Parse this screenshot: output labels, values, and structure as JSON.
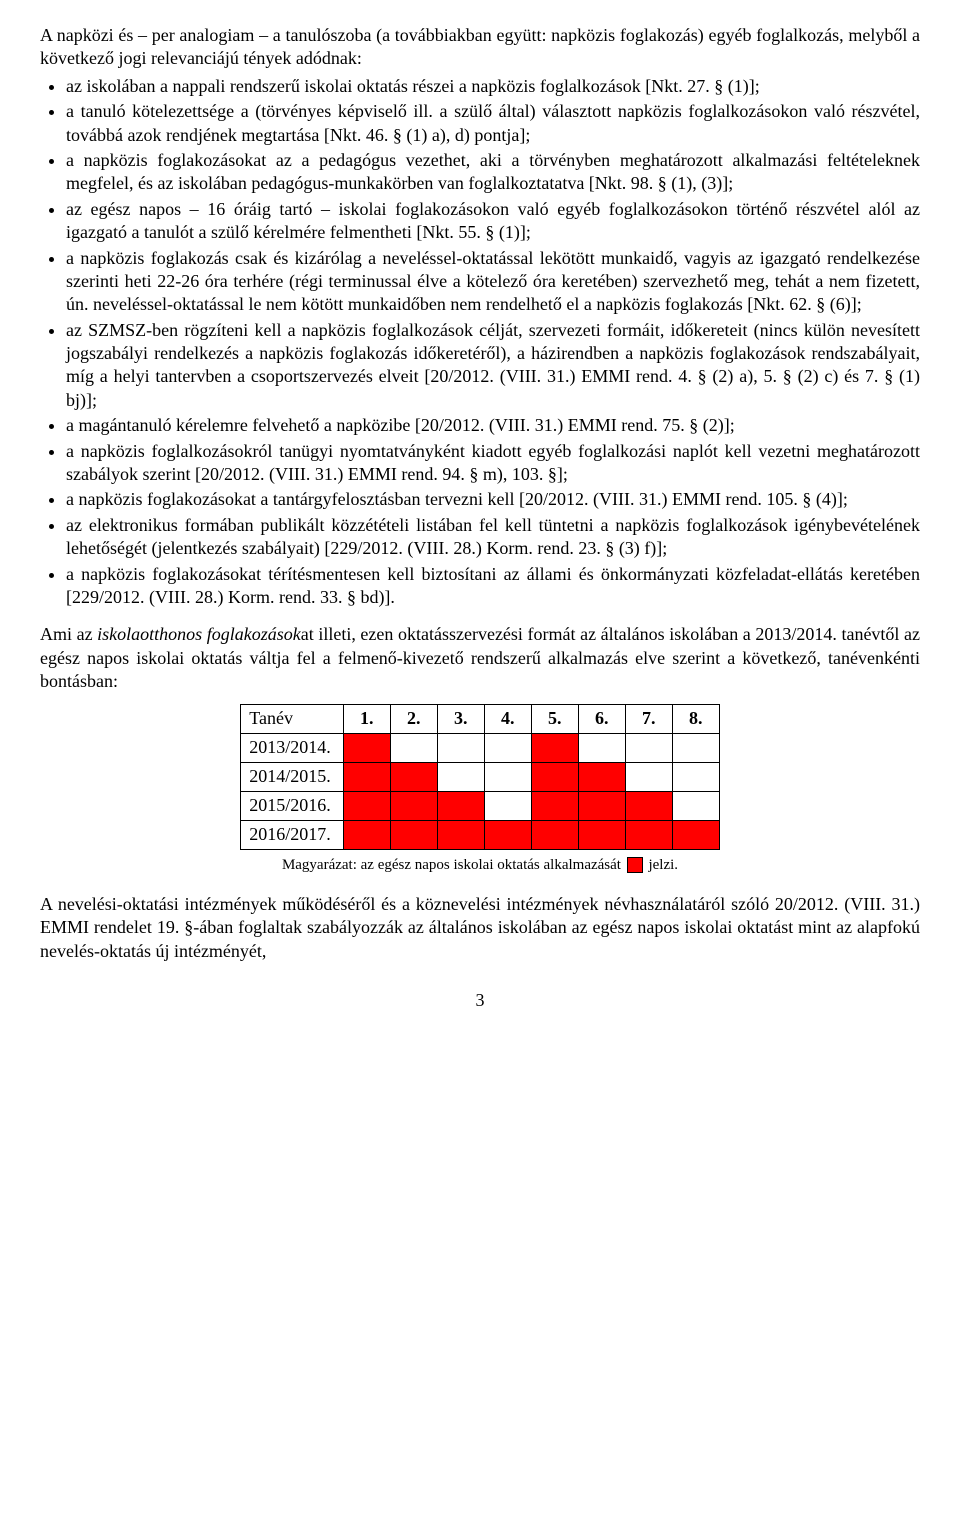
{
  "intro": "A napközi és – per analogiam – a tanulószoba (a továbbiakban együtt: napközis foglakozás) egyéb foglalkozás, melyből a következő jogi relevanciájú tények adódnak:",
  "bullets": [
    "az iskolában a nappali rendszerű iskolai oktatás részei a napközis foglalkozások [Nkt. 27. § (1)];",
    "a tanuló kötelezettsége a (törvényes képviselő ill. a szülő által) választott napközis foglalkozásokon való részvétel, továbbá azok rendjének megtartása [Nkt. 46. § (1) a), d) pontja];",
    "a napközis foglakozásokat az a pedagógus vezethet, aki a törvényben meghatározott alkalmazási feltételeknek megfelel, és az iskolában pedagógus-munkakörben van foglalkoztatatva [Nkt. 98. § (1), (3)];",
    "az egész napos – 16 óráig tartó – iskolai foglakozásokon való egyéb foglalkozásokon történő részvétel alól az igazgató a tanulót a szülő kérelmére felmentheti [Nkt. 55. § (1)];",
    "a napközis foglakozás csak és kizárólag a neveléssel-oktatással lekötött munkaidő, vagyis az igazgató rendelkezése szerinti heti 22-26 óra terhére (régi terminussal élve a kötelező óra keretében) szervezhető meg, tehát a nem fizetett, ún. neveléssel-oktatással le nem kötött munkaidőben nem rendelhető el a napközis foglakozás [Nkt. 62. § (6)];",
    "az SZMSZ-ben rögzíteni kell a napközis foglalkozások célját, szervezeti formáit, időkereteit (nincs külön nevesített jogszabályi rendelkezés a napközis foglakozás időkeretéről), a házirendben a napközis foglakozások rendszabályait, míg a helyi tantervben a csoportszervezés elveit [20/2012. (VIII. 31.) EMMI rend. 4. § (2) a), 5. § (2) c) és 7. § (1) bj)];",
    "a magántanuló kérelemre felvehető a napközibe [20/2012. (VIII. 31.) EMMI rend. 75. § (2)];",
    "a napközis foglalkozásokról tanügyi nyomtatványként kiadott egyéb foglalkozási naplót kell vezetni meghatározott szabályok szerint [20/2012. (VIII. 31.) EMMI rend. 94. § m), 103. §];",
    "a napközis foglakozásokat a tantárgyfelosztásban tervezni kell [20/2012. (VIII. 31.) EMMI rend. 105. § (4)];",
    "az elektronikus formában publikált közzétételi listában fel kell tüntetni a napközis foglalkozások igénybevételének lehetőségét (jelentkezés szabályait) [229/2012. (VIII. 28.) Korm. rend. 23. § (3) f)];",
    "a napközis foglakozásokat térítésmentesen kell biztosítani az állami és önkormányzati közfeladat-ellátás keretében [229/2012. (VIII. 28.) Korm. rend. 33. § bd)]."
  ],
  "para_after_pre": "Ami az ",
  "para_after_ital": "iskolaotthonos foglakozások",
  "para_after_post": "at illeti, ezen oktatásszervezési formát az általános iskolában a 2013/2014. tanévtől az egész napos iskolai oktatás váltja fel a felmenő-kivezető rendszerű alkalmazás elve szerint a következő, tanévenkénti bontásban:",
  "table": {
    "header_label": "Tanév",
    "cols": [
      "1.",
      "2.",
      "3.",
      "4.",
      "5.",
      "6.",
      "7.",
      "8."
    ],
    "rows": [
      {
        "label": "2013/2014.",
        "red": [
          1,
          0,
          0,
          0,
          1,
          0,
          0,
          0
        ]
      },
      {
        "label": "2014/2015.",
        "red": [
          1,
          1,
          0,
          0,
          1,
          1,
          0,
          0
        ]
      },
      {
        "label": "2015/2016.",
        "red": [
          1,
          1,
          1,
          0,
          1,
          1,
          1,
          0
        ]
      },
      {
        "label": "2016/2017.",
        "red": [
          1,
          1,
          1,
          1,
          1,
          1,
          1,
          1
        ]
      }
    ],
    "red_color": "#ff0000",
    "border_color": "#000000"
  },
  "legend_pre": "Magyarázat: az egész napos iskolai oktatás alkalmazását ",
  "legend_post": " jelzi.",
  "footer": "A nevelési-oktatási intézmények működéséről és a köznevelési intézmények névhasználatáról szóló 20/2012. (VIII. 31.) EMMI rendelet 19. §-ában foglaltak szabályozzák az általános iskolában az egész napos iskolai oktatást mint az alapfokú nevelés-oktatás új intézményét,",
  "pagenum": "3"
}
